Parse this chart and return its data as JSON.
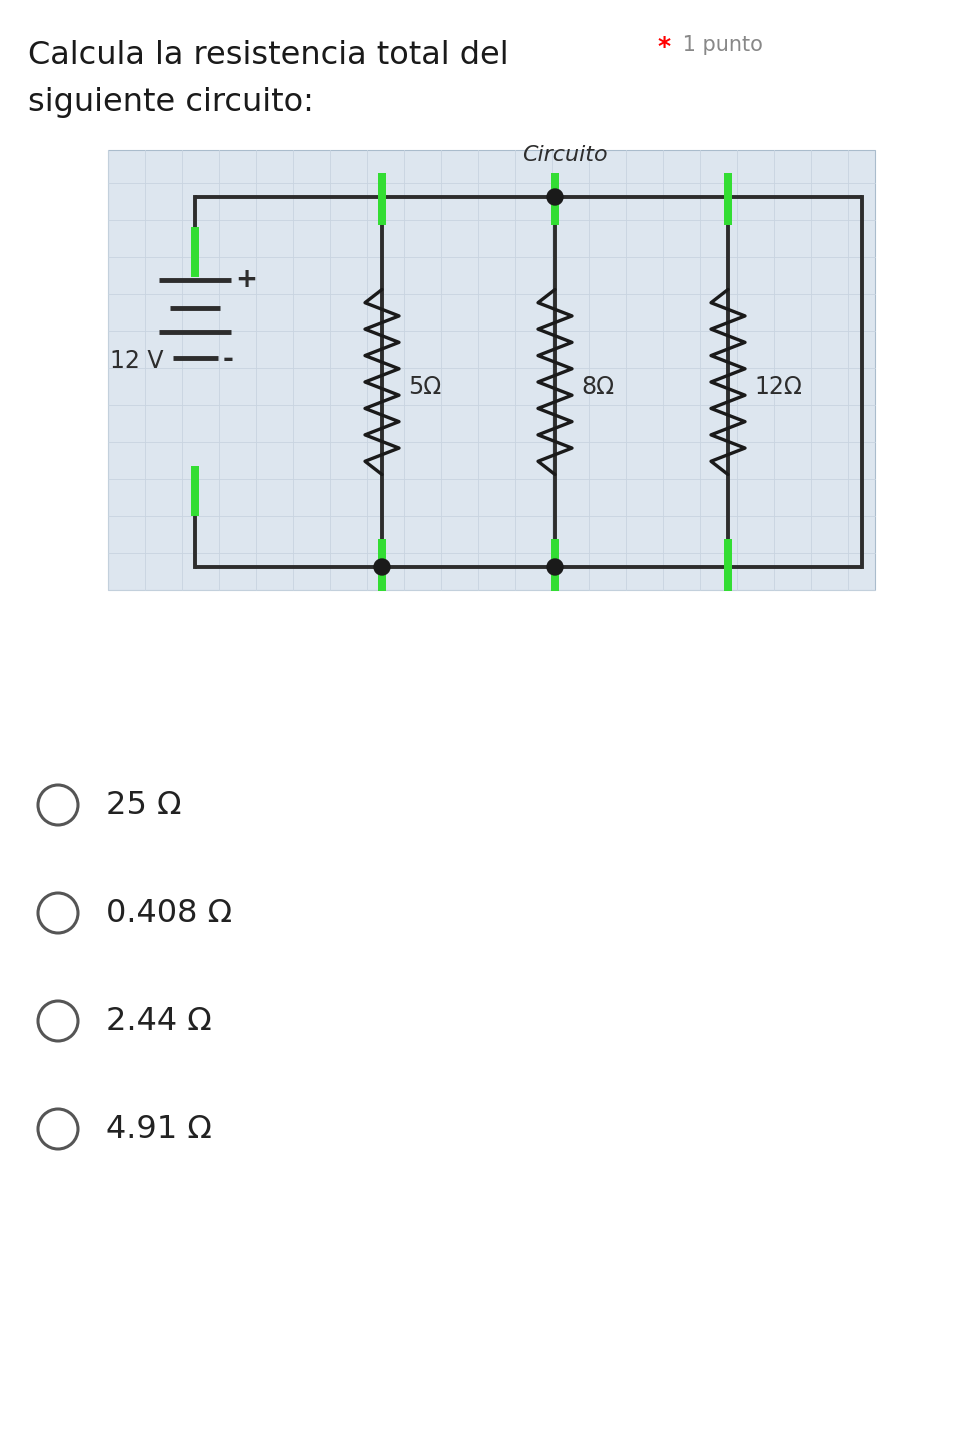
{
  "title_text": "Calcula la resistencia total del",
  "title_text2": "siguiente circuito:",
  "points_star": "*",
  "points_label": " 1 punto",
  "circuit_title": "Circuito",
  "voltage_label": "12 V",
  "voltage_plus": "+",
  "voltage_minus": "-",
  "resistors": [
    "5Ω",
    "8Ω",
    "12Ω"
  ],
  "options": [
    "25 Ω",
    "0.408 Ω",
    "2.44 Ω",
    "4.91 Ω"
  ],
  "bg_color": "#ffffff",
  "grid_color": "#c8d4e0",
  "wire_color": "#2d2d2d",
  "green_color": "#33dd33",
  "resistor_color": "#1a1a1a",
  "circuit_bg": "#dde6ef",
  "dot_color": "#1a1a1a",
  "title_fontsize": 23,
  "points_fontsize": 15,
  "option_fontsize": 23,
  "circuit_title_fontsize": 16
}
